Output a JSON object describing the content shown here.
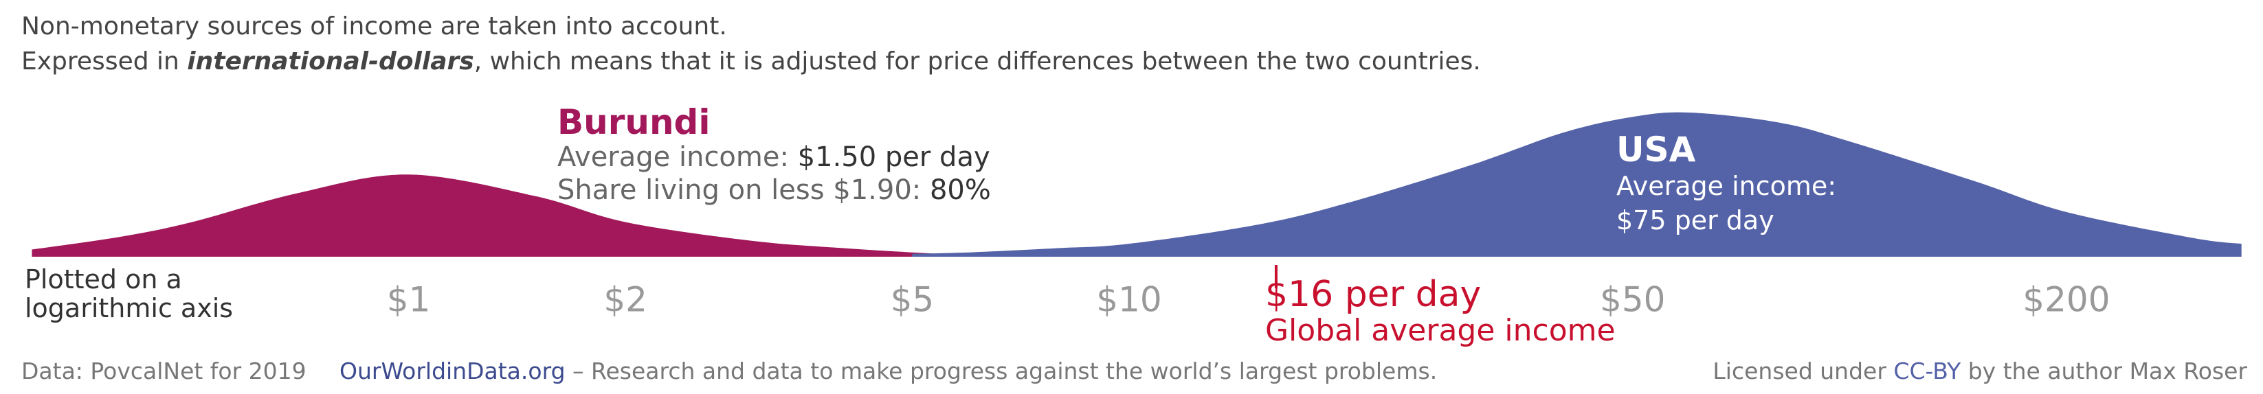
{
  "header": {
    "line1": "Non-monetary sources of income are taken into account.",
    "line2_before": "Expressed in ",
    "line2_emphasis": "international-dollars",
    "line2_after": ", which means that it is adjusted for price differences between the two countries."
  },
  "chart_data": {
    "type": "area",
    "log_x": true,
    "x": [
      0.3,
      0.4,
      0.5,
      0.7,
      1,
      1.5,
      2,
      3,
      4,
      5,
      6,
      8,
      10,
      15,
      20,
      30,
      40,
      50,
      60,
      80,
      100,
      150,
      200,
      300,
      350
    ],
    "series": [
      {
        "name": "Burundi",
        "color": "#a2185a",
        "values": [
          5,
          14,
          24,
          44,
          57,
          42,
          24,
          11,
          6,
          3,
          1,
          null,
          null,
          null,
          null,
          null,
          null,
          null,
          null,
          null,
          null,
          null,
          null,
          null,
          null
        ],
        "annotation": {
          "label1": "Average income: ",
          "value1": "$1.50 per day",
          "label2": "Share living on less $1.90: ",
          "value2": "80%"
        }
      },
      {
        "name": "USA",
        "color": "#5462a7",
        "values": [
          null,
          null,
          null,
          null,
          null,
          null,
          null,
          null,
          null,
          2,
          3,
          6,
          9,
          22,
          37,
          64,
          86,
          97,
          100,
          93,
          80,
          52,
          31,
          13,
          9
        ],
        "annotation": {
          "label1": "Average income:",
          "value1": "$75 per day"
        }
      }
    ],
    "xlim": [
      0.29,
      358
    ],
    "ylim": [
      0,
      100
    ],
    "xticks": [
      {
        "value": 1,
        "label": "$1"
      },
      {
        "value": 2,
        "label": "$2"
      },
      {
        "value": 5,
        "label": "$5"
      },
      {
        "value": 10,
        "label": "$10"
      },
      {
        "value": 50,
        "label": "$50"
      },
      {
        "value": 200,
        "label": "$200"
      }
    ],
    "axis_note": [
      "Plotted on a",
      "logarithmic axis"
    ],
    "global_average": {
      "value": 16,
      "label": "$16 per day",
      "caption": "Global average income",
      "color": "#c8102e"
    }
  },
  "footer": {
    "source": "Data: PovcalNet for 2019",
    "site": "OurWorldinData.org",
    "tagline": " – Research and data to make progress against the world’s largest problems.",
    "license_before": "Licensed under ",
    "license_link": "CC-BY",
    "license_after": " by the author Max Roser"
  }
}
